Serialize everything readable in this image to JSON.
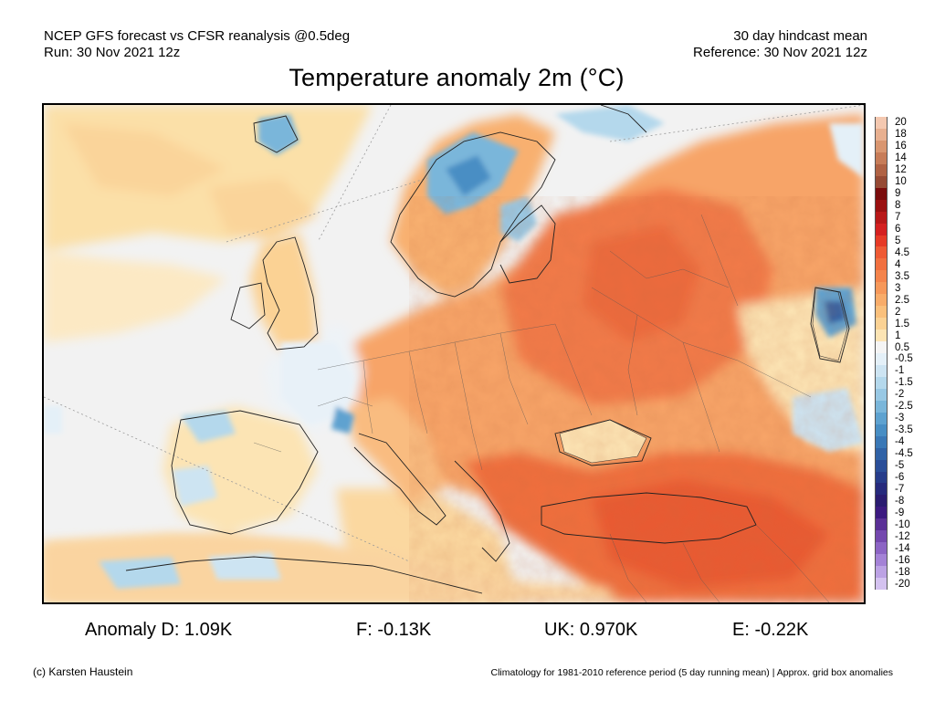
{
  "header": {
    "line1_left": "NCEP GFS forecast vs CFSR reanalysis @0.5deg",
    "line2_left": "Run: 30 Nov 2021 12z",
    "line1_right": "30 day hindcast mean",
    "line2_right": "Reference: 30 Nov 2021 12z"
  },
  "title": "Temperature anomaly 2m (°C)",
  "colorbar": {
    "levels": [
      {
        "label": "20",
        "color": "#f4c8b0"
      },
      {
        "label": "18",
        "color": "#e8b090"
      },
      {
        "label": "16",
        "color": "#d99670"
      },
      {
        "label": "14",
        "color": "#c77c58"
      },
      {
        "label": "12",
        "color": "#b06244"
      },
      {
        "label": "10",
        "color": "#964a34"
      },
      {
        "label": "9",
        "color": "#7a0c0c"
      },
      {
        "label": "8",
        "color": "#9a1010"
      },
      {
        "label": "7",
        "color": "#b81818"
      },
      {
        "label": "6",
        "color": "#d42020"
      },
      {
        "label": "5",
        "color": "#e63a26"
      },
      {
        "label": "4.5",
        "color": "#ee5a34"
      },
      {
        "label": "4",
        "color": "#f17040"
      },
      {
        "label": "3.5",
        "color": "#f4844c"
      },
      {
        "label": "3",
        "color": "#f6985a"
      },
      {
        "label": "2.5",
        "color": "#f8ac6a"
      },
      {
        "label": "2",
        "color": "#fac07c"
      },
      {
        "label": "1.5",
        "color": "#fbd294"
      },
      {
        "label": "1",
        "color": "#fce4b4"
      },
      {
        "label": "0.5",
        "color": "#f4f4f4"
      },
      {
        "label": "-0.5",
        "color": "#e4f0f8"
      },
      {
        "label": "-1",
        "color": "#cde4f2"
      },
      {
        "label": "-1.5",
        "color": "#b4d8ec"
      },
      {
        "label": "-2",
        "color": "#98c8e4"
      },
      {
        "label": "-2.5",
        "color": "#7ab6da"
      },
      {
        "label": "-3",
        "color": "#5ea2d0"
      },
      {
        "label": "-3.5",
        "color": "#488ec4"
      },
      {
        "label": "-4",
        "color": "#3a78b6"
      },
      {
        "label": "-4.5",
        "color": "#3062a6"
      },
      {
        "label": "-5",
        "color": "#2a4e98"
      },
      {
        "label": "-6",
        "color": "#263c8a"
      },
      {
        "label": "-7",
        "color": "#262a7c"
      },
      {
        "label": "-8",
        "color": "#2a1c70"
      },
      {
        "label": "-9",
        "color": "#3c1a80"
      },
      {
        "label": "-10",
        "color": "#5a3096"
      },
      {
        "label": "-12",
        "color": "#7448ae"
      },
      {
        "label": "-14",
        "color": "#8c64c4"
      },
      {
        "label": "-16",
        "color": "#a482d6"
      },
      {
        "label": "-18",
        "color": "#bca2e4"
      },
      {
        "label": "-20",
        "color": "#d4c2f0"
      }
    ]
  },
  "stats": {
    "anomaly_d": "Anomaly D: 1.09K",
    "f": "F: -0.13K",
    "uk": "UK: 0.970K",
    "e": "E: -0.22K"
  },
  "footer": {
    "credit": "(c) Karsten Haustein",
    "note": "Climatology for 1981-2010 reference period (5 day running mean) | Approx. grid box anomalies"
  },
  "map": {
    "background_color": "#f2f2f2",
    "ocean_color": "#f0f0f0",
    "border_color": "#333333"
  }
}
